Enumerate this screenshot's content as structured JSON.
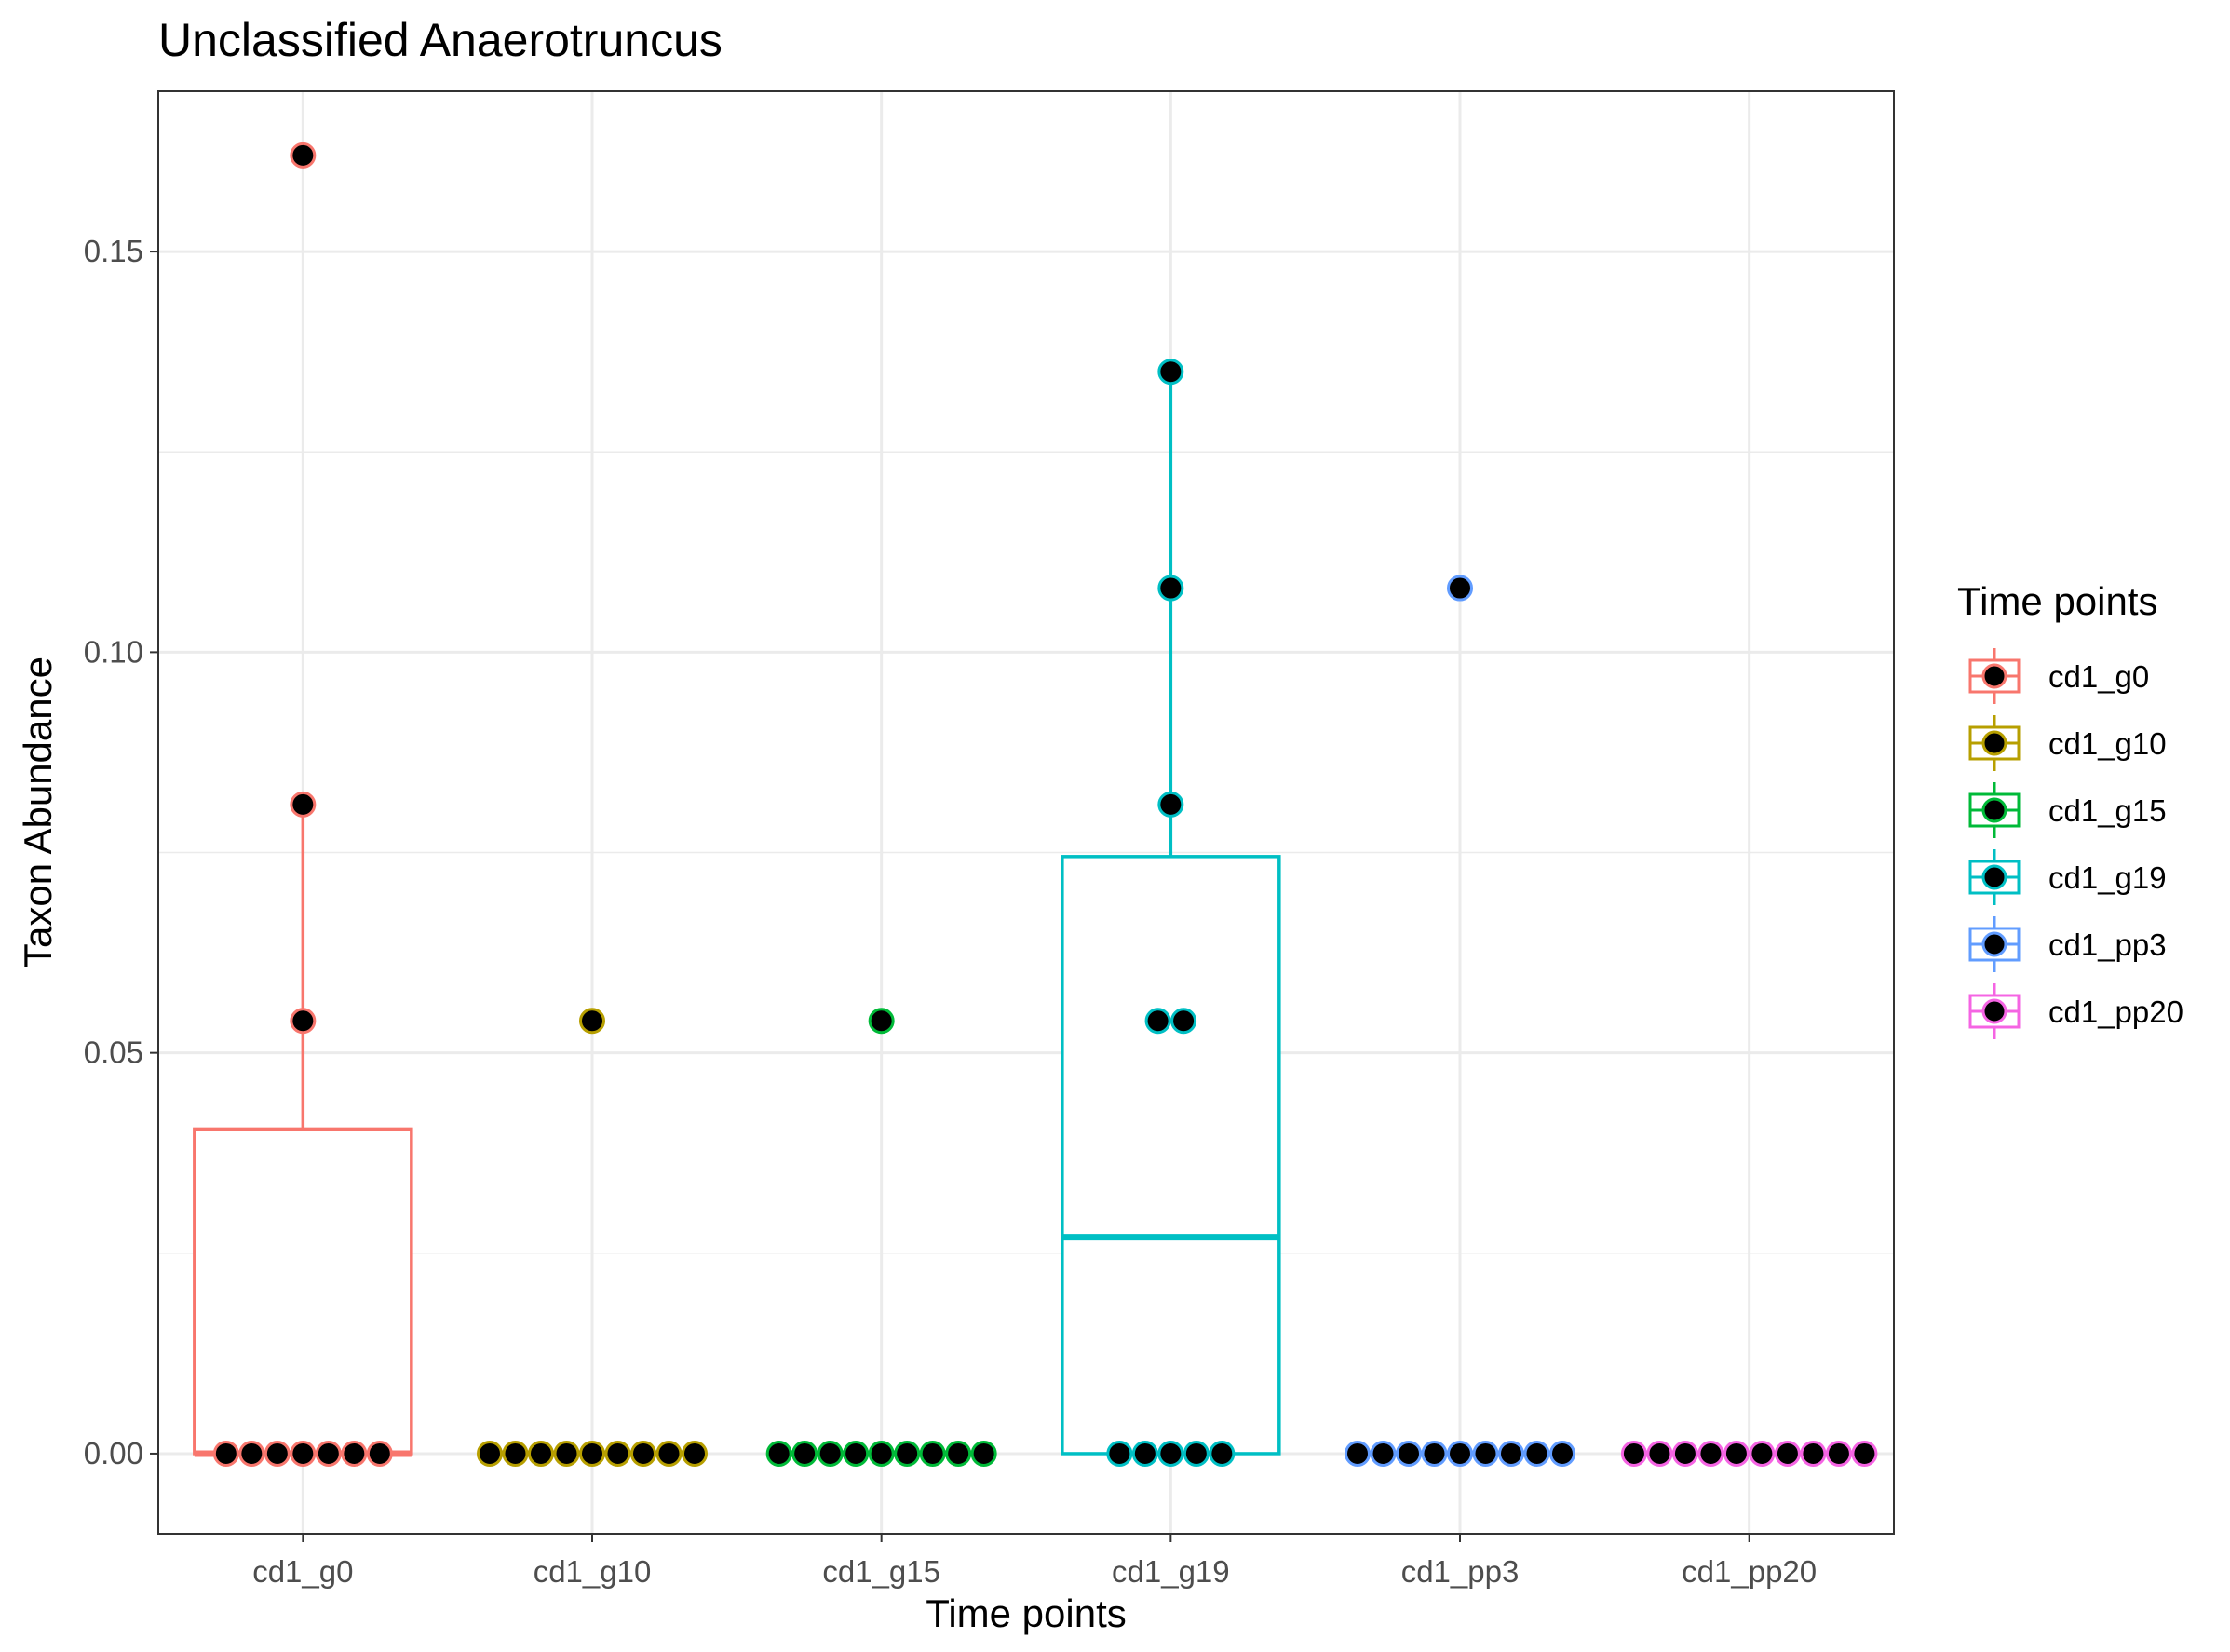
{
  "chart_data": {
    "type": "box",
    "title": "Unclassified  Anaerotruncus",
    "xlabel": "Time points",
    "ylabel": "Taxon Abundance",
    "ylim": [
      -0.01,
      0.17
    ],
    "yticks": [
      0.0,
      0.05,
      0.1,
      0.15
    ],
    "ytick_labels": [
      "0.00",
      "0.05",
      "0.10",
      "0.15"
    ],
    "grid": true,
    "legend": {
      "title": "Time points",
      "position": "right"
    },
    "categories": [
      "cd1_g0",
      "cd1_g10",
      "cd1_g15",
      "cd1_g19",
      "cd1_pp3",
      "cd1_pp20"
    ],
    "series": [
      {
        "name": "cd1_g0",
        "color": "#F8766D",
        "box": {
          "min": 0,
          "q1": 0,
          "median": 0,
          "q3": 0.0405,
          "whisker_high": 0.081
        },
        "points": [
          0.162,
          0.081,
          0.054,
          0,
          0,
          0,
          0,
          0,
          0,
          0
        ]
      },
      {
        "name": "cd1_g10",
        "color": "#B79F00",
        "box": {
          "min": 0,
          "q1": 0,
          "median": 0,
          "q3": 0,
          "whisker_high": 0
        },
        "points": [
          0.054,
          0,
          0,
          0,
          0,
          0,
          0,
          0,
          0,
          0
        ]
      },
      {
        "name": "cd1_g15",
        "color": "#00BA38",
        "box": {
          "min": 0,
          "q1": 0,
          "median": 0,
          "q3": 0,
          "whisker_high": 0
        },
        "points": [
          0.054,
          0,
          0,
          0,
          0,
          0,
          0,
          0,
          0,
          0
        ]
      },
      {
        "name": "cd1_g19",
        "color": "#00BFC4",
        "box": {
          "min": 0,
          "q1": 0,
          "median": 0.027,
          "q3": 0.0745,
          "whisker_high": 0.135
        },
        "points": [
          0.135,
          0.108,
          0.081,
          0.054,
          0.054,
          0,
          0,
          0,
          0,
          0
        ]
      },
      {
        "name": "cd1_pp3",
        "color": "#619CFF",
        "box": {
          "min": 0,
          "q1": 0,
          "median": 0,
          "q3": 0,
          "whisker_high": 0
        },
        "points": [
          0.108,
          0,
          0,
          0,
          0,
          0,
          0,
          0,
          0,
          0
        ]
      },
      {
        "name": "cd1_pp20",
        "color": "#F564E3",
        "box": {
          "min": 0,
          "q1": 0,
          "median": 0,
          "q3": 0,
          "whisker_high": 0
        },
        "points": [
          0,
          0,
          0,
          0,
          0,
          0,
          0,
          0,
          0,
          0
        ]
      }
    ]
  }
}
